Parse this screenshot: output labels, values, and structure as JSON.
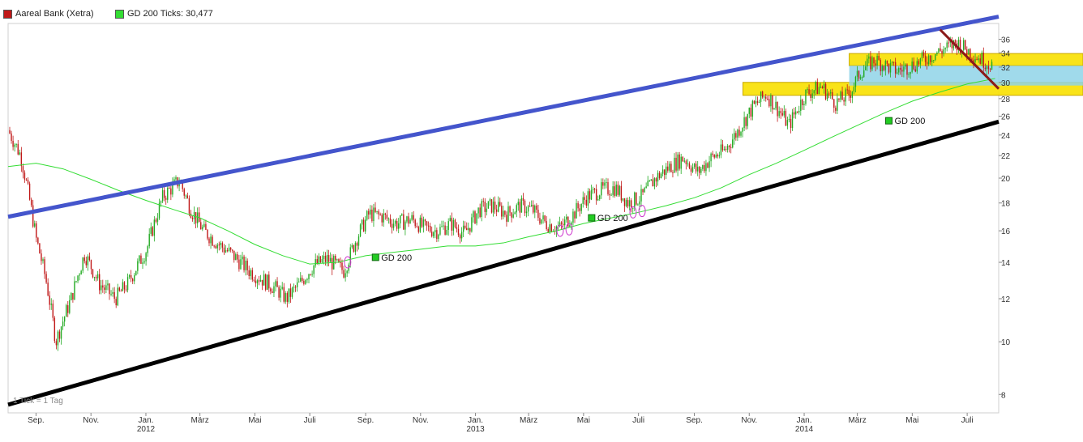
{
  "legend": {
    "stock": {
      "label": "Aareal Bank (Xetra)",
      "color": "#c01818"
    },
    "ma": {
      "label": "GD 200 Ticks: 30,477",
      "color": "#33dd33"
    }
  },
  "tick_note": "1 Tick = 1 Tag",
  "chart_data": {
    "type": "line",
    "title": "",
    "y_scale": "log",
    "ylim": [
      7.4,
      38.5
    ],
    "y_ticks": [
      8,
      10,
      12,
      14,
      16,
      18,
      20,
      22,
      24,
      26,
      28,
      30,
      32,
      34,
      36
    ],
    "x_range": [
      "2011-08-01",
      "2014-08-05"
    ],
    "x_ticks": [
      {
        "date": "2011-09-01",
        "label": "Sep.",
        "year": ""
      },
      {
        "date": "2011-11-01",
        "label": "Nov.",
        "year": ""
      },
      {
        "date": "2012-01-01",
        "label": "Jan.",
        "year": "2012"
      },
      {
        "date": "2012-03-01",
        "label": "März",
        "year": ""
      },
      {
        "date": "2012-05-01",
        "label": "Mai",
        "year": ""
      },
      {
        "date": "2012-07-01",
        "label": "Juli",
        "year": ""
      },
      {
        "date": "2012-09-01",
        "label": "Sep.",
        "year": ""
      },
      {
        "date": "2012-11-01",
        "label": "Nov.",
        "year": ""
      },
      {
        "date": "2013-01-01",
        "label": "Jan.",
        "year": "2013"
      },
      {
        "date": "2013-03-01",
        "label": "März",
        "year": ""
      },
      {
        "date": "2013-05-01",
        "label": "Mai",
        "year": ""
      },
      {
        "date": "2013-07-01",
        "label": "Juli",
        "year": ""
      },
      {
        "date": "2013-09-01",
        "label": "Sep.",
        "year": ""
      },
      {
        "date": "2013-11-01",
        "label": "Nov.",
        "year": ""
      },
      {
        "date": "2014-01-01",
        "label": "Jan.",
        "year": "2014"
      },
      {
        "date": "2014-03-01",
        "label": "März",
        "year": ""
      },
      {
        "date": "2014-05-01",
        "label": "Mai",
        "year": ""
      },
      {
        "date": "2014-07-01",
        "label": "Juli",
        "year": ""
      }
    ],
    "series": [
      {
        "name": "Aareal Bank (Xetra)",
        "style": "candlestick",
        "color_up": "#22aa22",
        "color_down": "#c01818",
        "x": [
          "2011-08-01",
          "2011-08-15",
          "2011-09-01",
          "2011-09-12",
          "2011-09-23",
          "2011-10-10",
          "2011-10-25",
          "2011-11-10",
          "2011-11-28",
          "2011-12-12",
          "2012-01-02",
          "2012-01-20",
          "2012-02-07",
          "2012-02-20",
          "2012-03-05",
          "2012-03-20",
          "2012-04-05",
          "2012-04-25",
          "2012-05-10",
          "2012-05-25",
          "2012-06-05",
          "2012-06-20",
          "2012-07-05",
          "2012-07-20",
          "2012-08-08",
          "2012-08-22",
          "2012-09-05",
          "2012-09-20",
          "2012-10-05",
          "2012-10-22",
          "2012-11-05",
          "2012-11-20",
          "2012-12-05",
          "2012-12-20",
          "2013-01-05",
          "2013-01-20",
          "2013-02-05",
          "2013-02-20",
          "2013-03-05",
          "2013-03-20",
          "2013-04-05",
          "2013-04-20",
          "2013-05-05",
          "2013-05-20",
          "2013-06-05",
          "2013-06-20",
          "2013-07-05",
          "2013-07-20",
          "2013-08-05",
          "2013-08-20",
          "2013-09-05",
          "2013-09-20",
          "2013-10-05",
          "2013-10-20",
          "2013-11-05",
          "2013-11-20",
          "2013-12-05",
          "2013-12-15",
          "2014-01-02",
          "2014-01-20",
          "2014-02-05",
          "2014-02-20",
          "2014-03-05",
          "2014-03-20",
          "2014-04-05",
          "2014-04-15",
          "2014-05-05",
          "2014-05-20",
          "2014-06-05",
          "2014-06-20",
          "2014-07-05",
          "2014-07-25"
        ],
        "y": [
          24.5,
          22.0,
          15.5,
          13.0,
          10.0,
          12.0,
          14.5,
          12.8,
          12.0,
          12.8,
          14.8,
          18.5,
          19.8,
          17.5,
          16.0,
          15.2,
          14.5,
          13.5,
          13.0,
          12.5,
          12.0,
          12.8,
          13.8,
          14.2,
          13.5,
          15.5,
          17.2,
          17.0,
          16.5,
          16.8,
          16.2,
          16.0,
          16.5,
          15.8,
          17.5,
          17.8,
          17.2,
          17.8,
          17.5,
          16.5,
          16.2,
          17.2,
          18.5,
          19.0,
          19.2,
          18.0,
          18.5,
          20.0,
          21.0,
          21.8,
          20.5,
          21.8,
          22.5,
          24.5,
          27.0,
          28.5,
          26.5,
          25.0,
          28.5,
          29.5,
          27.5,
          28.5,
          31.5,
          33.0,
          32.0,
          31.5,
          32.5,
          33.5,
          34.5,
          35.5,
          34.0,
          32.5
        ]
      },
      {
        "name": "GD 200",
        "style": "line",
        "color": "#33dd33",
        "x": [
          "2011-08-01",
          "2011-09-01",
          "2011-10-01",
          "2011-11-01",
          "2011-12-01",
          "2012-01-01",
          "2012-02-01",
          "2012-03-01",
          "2012-04-01",
          "2012-05-01",
          "2012-06-01",
          "2012-07-01",
          "2012-08-01",
          "2012-09-01",
          "2012-10-01",
          "2012-11-01",
          "2012-12-01",
          "2013-01-01",
          "2013-02-01",
          "2013-03-01",
          "2013-04-01",
          "2013-05-01",
          "2013-06-01",
          "2013-07-01",
          "2013-08-01",
          "2013-09-01",
          "2013-10-01",
          "2013-11-01",
          "2013-12-01",
          "2014-01-01",
          "2014-02-01",
          "2014-03-01",
          "2014-04-01",
          "2014-05-01",
          "2014-06-01",
          "2014-07-01",
          "2014-08-01"
        ],
        "y": [
          21.0,
          21.3,
          20.8,
          19.9,
          19.0,
          18.2,
          17.5,
          16.9,
          16.0,
          15.1,
          14.4,
          13.9,
          14.0,
          14.4,
          14.6,
          14.8,
          15.0,
          15.0,
          15.2,
          15.6,
          16.0,
          16.5,
          16.9,
          17.3,
          17.8,
          18.4,
          19.2,
          20.3,
          21.3,
          22.5,
          23.8,
          25.0,
          26.4,
          27.7,
          28.8,
          29.8,
          30.5
        ]
      }
    ],
    "trendlines": [
      {
        "name": "upper-channel",
        "color": "#4455cc",
        "x": [
          "2011-08-01",
          "2014-08-05"
        ],
        "y": [
          16.98,
          39.63
        ]
      },
      {
        "name": "lower-channel",
        "color": "#000000",
        "x": [
          "2011-08-01",
          "2014-08-05"
        ],
        "y": [
          7.66,
          25.4
        ]
      },
      {
        "name": "short-downtrend",
        "color": "#8b1a1a",
        "x": [
          "2014-06-01",
          "2014-08-05"
        ],
        "y": [
          37.5,
          29.2
        ]
      }
    ],
    "zones": [
      {
        "name": "resistance-band",
        "color": "#f8e000",
        "x_start": "2014-02-20",
        "y": [
          32.2,
          33.9
        ]
      },
      {
        "name": "support-band",
        "color": "#f8e000",
        "x_start": "2013-10-25",
        "y": [
          28.4,
          30.0
        ]
      },
      {
        "name": "consolidation-range",
        "color": "#8fd3e8",
        "x_start": "2014-02-20",
        "y": [
          29.6,
          32.2
        ]
      }
    ],
    "annotations": [
      {
        "text": "GD 200",
        "x": "2012-09-12",
        "y": 14.3
      },
      {
        "text": "GD 200",
        "x": "2013-05-10",
        "y": 16.9
      },
      {
        "text": "GD 200",
        "x": "2014-04-05",
        "y": 25.5
      }
    ],
    "ma_touch_markers": [
      {
        "x": "2012-08-12",
        "y": 14.0
      },
      {
        "x": "2013-04-05",
        "y": 16.0
      },
      {
        "x": "2013-04-15",
        "y": 16.1
      },
      {
        "x": "2013-06-25",
        "y": 17.3
      },
      {
        "x": "2013-07-05",
        "y": 17.4
      }
    ],
    "grid": false,
    "legend_position": "top-left"
  }
}
